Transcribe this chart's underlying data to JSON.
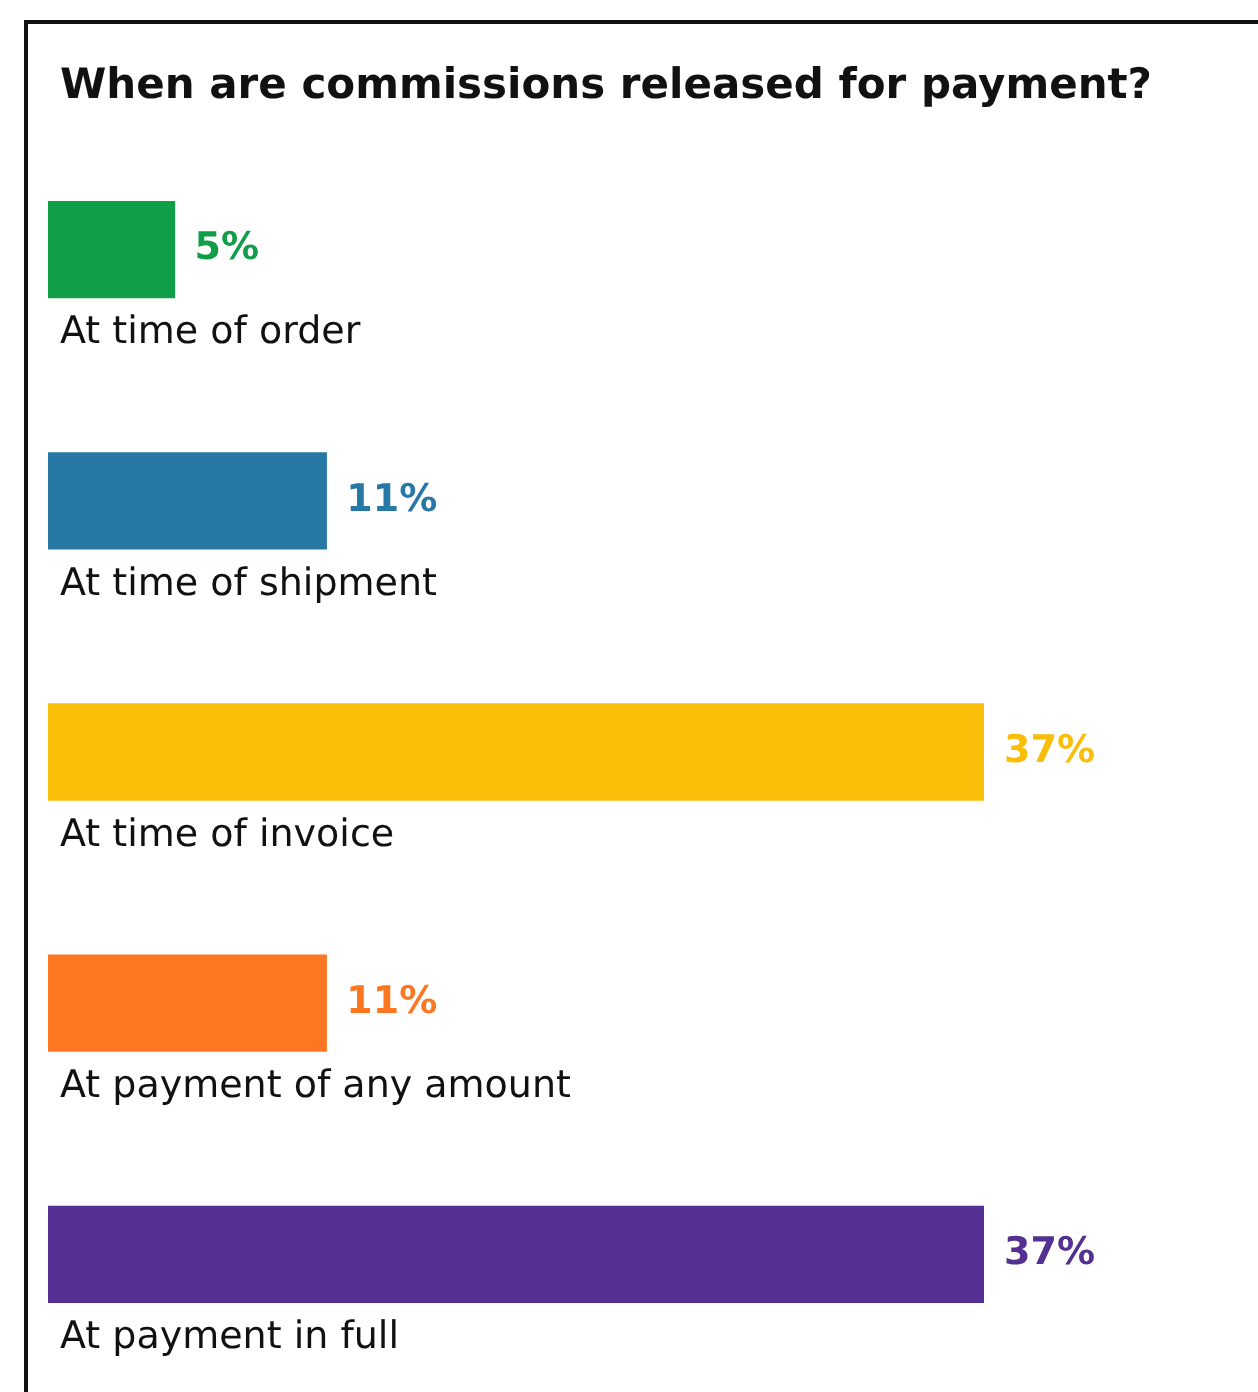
{
  "chart_data": {
    "type": "bar",
    "orientation": "horizontal",
    "title": "When are commissions released for payment?",
    "categories": [
      "At time of order",
      "At time of shipment",
      "At time of invoice",
      "At payment of any amount",
      "At payment in full"
    ],
    "values": [
      5,
      11,
      37,
      11,
      37
    ],
    "colors": [
      "#109e48",
      "#2878a6",
      "#f8be08",
      "#fd7722",
      "#533091"
    ],
    "value_labels": [
      "5%",
      "11%",
      "37%",
      "11%",
      "37%"
    ]
  }
}
